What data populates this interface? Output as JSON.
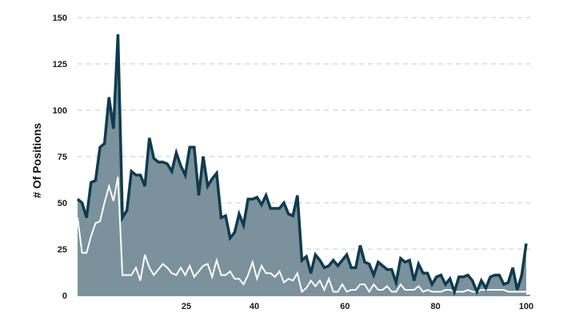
{
  "chart_data": {
    "type": "area",
    "title": "",
    "xlabel": "",
    "ylabel": "# Of Positions",
    "xlim": [
      1,
      100
    ],
    "ylim": [
      0,
      150
    ],
    "x_ticks": [
      25,
      40,
      60,
      80,
      100
    ],
    "y_ticks": [
      0,
      25,
      50,
      75,
      100,
      125,
      150
    ],
    "grid": "horizontal dashed",
    "legend": "none",
    "colors": {
      "area_fill": "#7b919c",
      "main_line": "#0e3b4f",
      "secondary_line": "#ffffff",
      "grid": "#c8c8c8"
    },
    "series": [
      {
        "values": [
          52,
          50,
          42,
          61,
          62,
          80,
          82,
          107,
          90,
          141,
          42,
          46,
          67,
          65,
          65,
          59,
          85,
          74,
          72,
          72,
          71,
          67,
          77,
          70,
          65,
          80,
          80,
          54,
          75,
          59,
          63,
          66,
          42,
          43,
          31,
          34,
          44,
          38,
          52,
          52,
          53,
          49,
          54,
          47,
          47,
          47,
          50,
          44,
          43,
          54,
          19,
          21,
          12,
          22,
          19,
          15,
          16,
          19,
          16,
          19,
          22,
          15,
          15,
          27,
          18,
          17,
          11,
          18,
          16,
          14,
          14,
          7,
          20,
          18,
          19,
          8,
          17,
          12,
          12,
          6,
          10,
          11,
          6,
          9,
          2,
          10,
          10,
          11,
          8,
          2,
          8,
          4,
          10,
          11,
          11,
          6,
          7,
          15,
          3,
          11,
          28
        ]
      },
      {
        "values": [
          42,
          23,
          23,
          32,
          39,
          40,
          50,
          59,
          51,
          64,
          11,
          11,
          11,
          15,
          8,
          22,
          15,
          11,
          14,
          17,
          15,
          12,
          11,
          15,
          11,
          16,
          10,
          13,
          16,
          17,
          10,
          19,
          11,
          11,
          13,
          9,
          9,
          6,
          11,
          18,
          9,
          16,
          12,
          12,
          10,
          13,
          7,
          9,
          8,
          12,
          2,
          4,
          8,
          5,
          8,
          3,
          9,
          2,
          2,
          6,
          2,
          3,
          3,
          6,
          6,
          2,
          6,
          3,
          3,
          5,
          2,
          2,
          6,
          3,
          3,
          3,
          5,
          2,
          3,
          2,
          2,
          2,
          3,
          3,
          2,
          2,
          2,
          3,
          2,
          2,
          3,
          3,
          3,
          3,
          3,
          3,
          2,
          2,
          2,
          2,
          2
        ]
      }
    ]
  }
}
